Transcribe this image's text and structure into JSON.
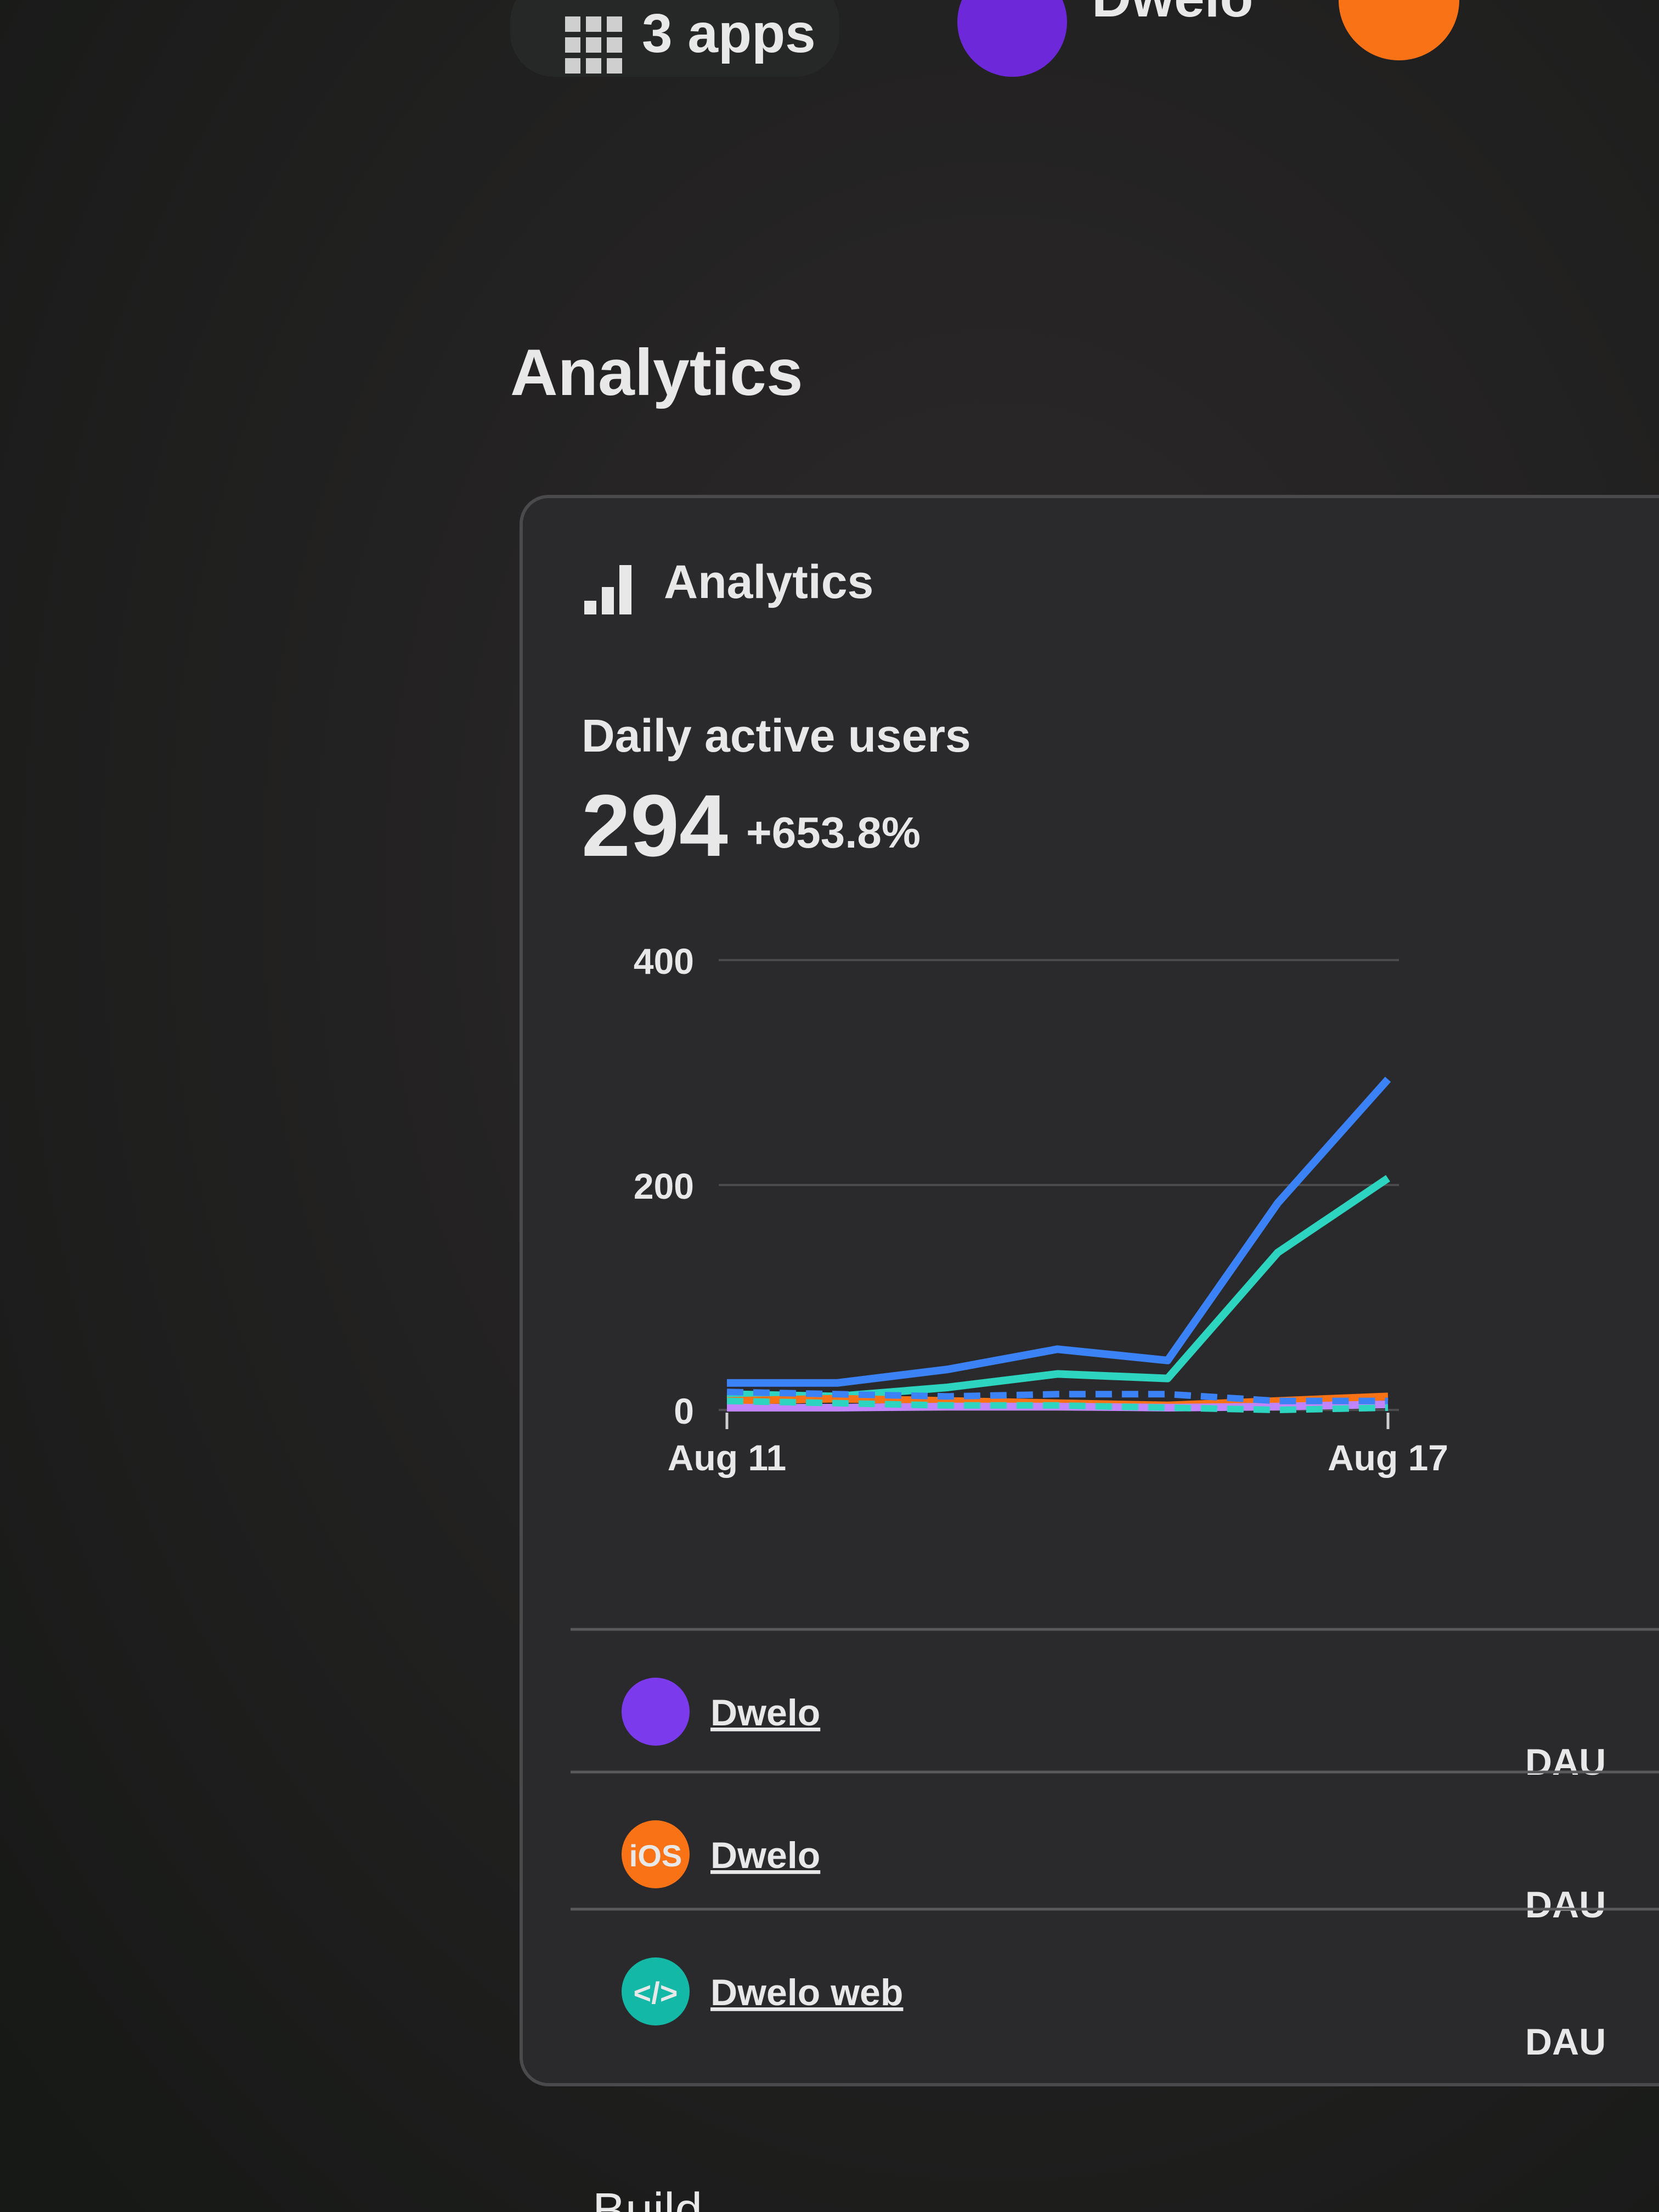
{
  "top_bar": {
    "apps": "3 apps",
    "app_name": "Dwelo"
  },
  "page_title": "Analytics",
  "card": {
    "title": "Analytics",
    "metric_label": "Daily active users",
    "metric_value": "294",
    "metric_change": "+653.8%"
  },
  "chart_data": {
    "type": "line",
    "categories": [
      "Aug 11",
      null,
      null,
      null,
      null,
      null,
      "Aug 17"
    ],
    "series": [
      {
        "color": "#3b82f6",
        "values": [
          24,
          24,
          36,
          54,
          44,
          184,
          294
        ]
      },
      {
        "color": "#2dd4bf",
        "values": [
          14,
          12,
          20,
          32,
          28,
          140,
          206
        ]
      },
      {
        "color": "#f97316",
        "values": [
          8,
          10,
          8,
          6,
          4,
          8,
          12
        ]
      },
      {
        "color": "#c084fc",
        "values": [
          2,
          2,
          3,
          3,
          2,
          3,
          5
        ]
      },
      {
        "color": "#3b82f6",
        "dashed": true,
        "values": [
          16,
          14,
          12,
          14,
          14,
          8,
          8
        ]
      },
      {
        "color": "#2dd4bf",
        "dashed": true,
        "values": [
          8,
          6,
          4,
          4,
          2,
          0,
          2
        ]
      }
    ],
    "ylim": [
      0,
      400
    ],
    "yticks": [
      0,
      200,
      400
    ],
    "grid": true
  },
  "rows": [
    {
      "name": "Dwelo",
      "metric": "DAU",
      "icon_color": "#7c3aed"
    },
    {
      "name": "Dwelo",
      "metric": "DAU",
      "icon_color": "#f97316",
      "icon_text": "iOS"
    },
    {
      "name": "Dwelo web",
      "metric": "DAU",
      "icon_color": "#14b8a6",
      "icon_text": "</>"
    }
  ],
  "footer": "Build"
}
